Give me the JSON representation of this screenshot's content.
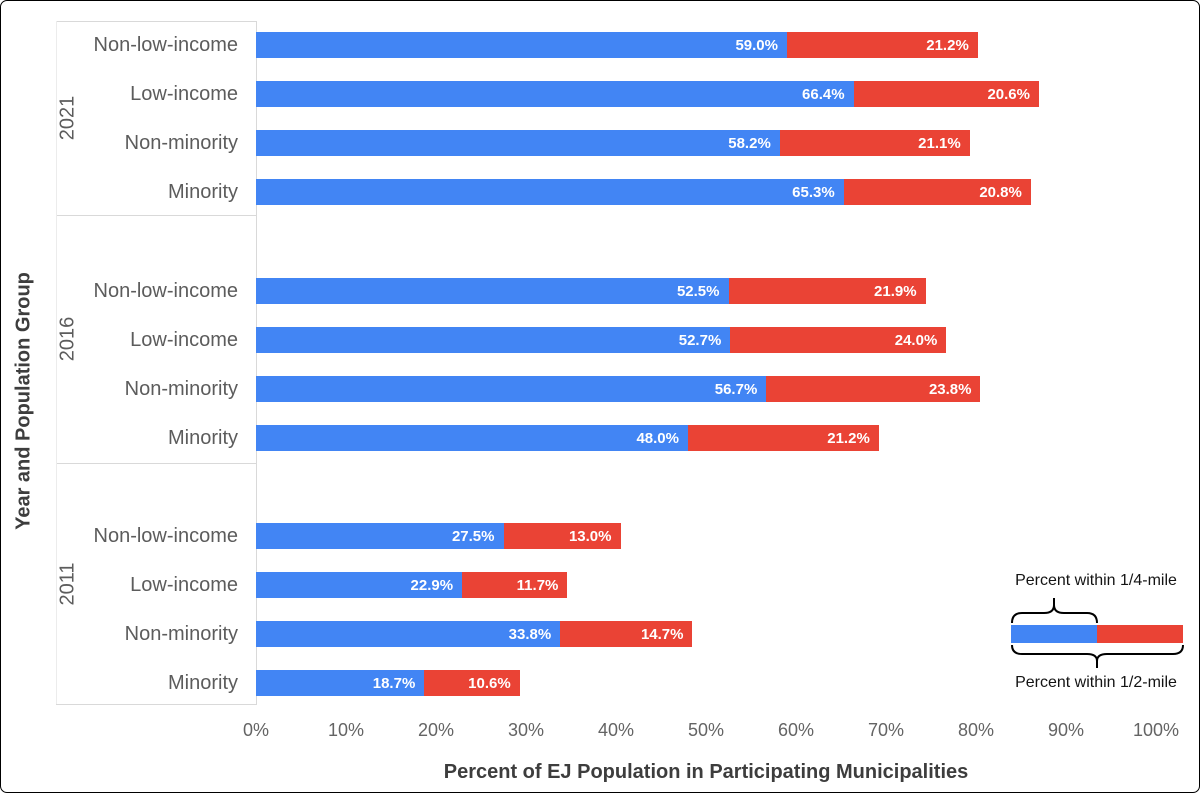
{
  "figure": {
    "y_axis_title": "Year and Population Group",
    "x_axis_title": "Percent of EJ Population in Participating Municipalities"
  },
  "colors": {
    "quarter_mile_blue": "#4285F4",
    "half_mile_red": "#EA4335",
    "grid_line": "#D9D9D9",
    "label_text": "#5C5C5C",
    "title_text": "#3D3D3D"
  },
  "chart_data": {
    "type": "bar",
    "orientation": "horizontal",
    "stacked": true,
    "grid": false,
    "x_axis": {
      "range": [
        0,
        100
      ],
      "ticks": [
        "0%",
        "10%",
        "20%",
        "30%",
        "40%",
        "50%",
        "60%",
        "70%",
        "80%",
        "90%",
        "100%"
      ],
      "title": "Percent of EJ Population in Participating Municipalities"
    },
    "y_axis": {
      "title": "Year and Population Group"
    },
    "series": [
      {
        "id": "within_quarter_mile",
        "legend_label": "Percent within 1/4-mile",
        "color": "#4285F4",
        "encoding": "blue segment = percent within 1/4-mile"
      },
      {
        "id": "within_half_mile",
        "legend_label": "Percent within 1/2-mile",
        "color": "#EA4335",
        "encoding": "blue + red total = percent within 1/2-mile; red label shows red segment size"
      }
    ],
    "legend": {
      "top_label": "Percent within 1/4-mile",
      "bottom_label": "Percent within 1/2-mile"
    },
    "groups": [
      {
        "year": "2021",
        "rows": [
          {
            "label": "Non-low-income",
            "within_quarter_mile_pct": 59.0,
            "additional_to_half_mile_pct": 21.2
          },
          {
            "label": "Low-income",
            "within_quarter_mile_pct": 66.4,
            "additional_to_half_mile_pct": 20.6
          },
          {
            "label": "Non-minority",
            "within_quarter_mile_pct": 58.2,
            "additional_to_half_mile_pct": 21.1
          },
          {
            "label": "Minority",
            "within_quarter_mile_pct": 65.3,
            "additional_to_half_mile_pct": 20.8
          }
        ]
      },
      {
        "year": "2016",
        "rows": [
          {
            "label": "Non-low-income",
            "within_quarter_mile_pct": 52.5,
            "additional_to_half_mile_pct": 21.9
          },
          {
            "label": "Low-income",
            "within_quarter_mile_pct": 52.7,
            "additional_to_half_mile_pct": 24.0
          },
          {
            "label": "Non-minority",
            "within_quarter_mile_pct": 56.7,
            "additional_to_half_mile_pct": 23.8
          },
          {
            "label": "Minority",
            "within_quarter_mile_pct": 48.0,
            "additional_to_half_mile_pct": 21.2
          }
        ]
      },
      {
        "year": "2011",
        "rows": [
          {
            "label": "Non-low-income",
            "within_quarter_mile_pct": 27.5,
            "additional_to_half_mile_pct": 13.0
          },
          {
            "label": "Low-income",
            "within_quarter_mile_pct": 22.9,
            "additional_to_half_mile_pct": 11.7
          },
          {
            "label": "Non-minority",
            "within_quarter_mile_pct": 33.8,
            "additional_to_half_mile_pct": 14.7
          },
          {
            "label": "Minority",
            "within_quarter_mile_pct": 18.7,
            "additional_to_half_mile_pct": 10.6
          }
        ]
      }
    ]
  }
}
